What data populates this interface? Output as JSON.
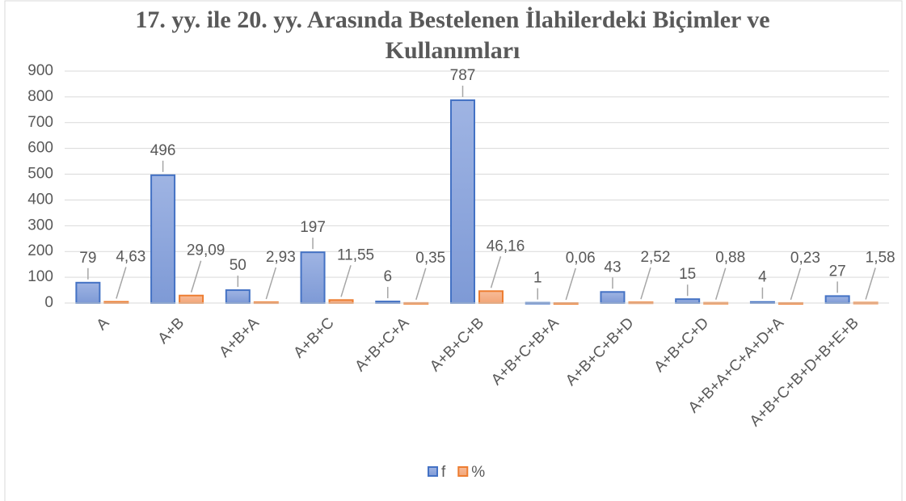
{
  "chart_data": {
    "type": "bar",
    "title": "17. yy. ile 20. yy. Arasında Bestelenen İlahilerdeki Biçimler ve Kullanımları",
    "categories": [
      "A",
      "A+B",
      "A+B+A",
      "A+B+C",
      "A+B+C+A",
      "A+B+C+B",
      "A+B+C+B+A",
      "A+B+C+B+D",
      "A+B+C+D",
      "A+B+A+C+A+D+A",
      "A+B+C+B+D+B+E+B"
    ],
    "series": [
      {
        "name": "f",
        "color": "#4472c4",
        "values": [
          79,
          496,
          50,
          197,
          6,
          787,
          1,
          43,
          15,
          4,
          27
        ]
      },
      {
        "name": "%",
        "color": "#ed7d31",
        "values": [
          4.63,
          29.09,
          2.93,
          11.55,
          0.35,
          46.16,
          0.06,
          2.52,
          0.88,
          0.23,
          1.58
        ],
        "value_labels": [
          "4,63",
          "29,09",
          "2,93",
          "11,55",
          "0,35",
          "46,16",
          "0,06",
          "2,52",
          "0,88",
          "0,23",
          "1,58"
        ]
      }
    ],
    "ylim": [
      0,
      900
    ],
    "yticks": [
      0,
      100,
      200,
      300,
      400,
      500,
      600,
      700,
      800,
      900
    ],
    "grid": true,
    "legend": "bottom"
  }
}
